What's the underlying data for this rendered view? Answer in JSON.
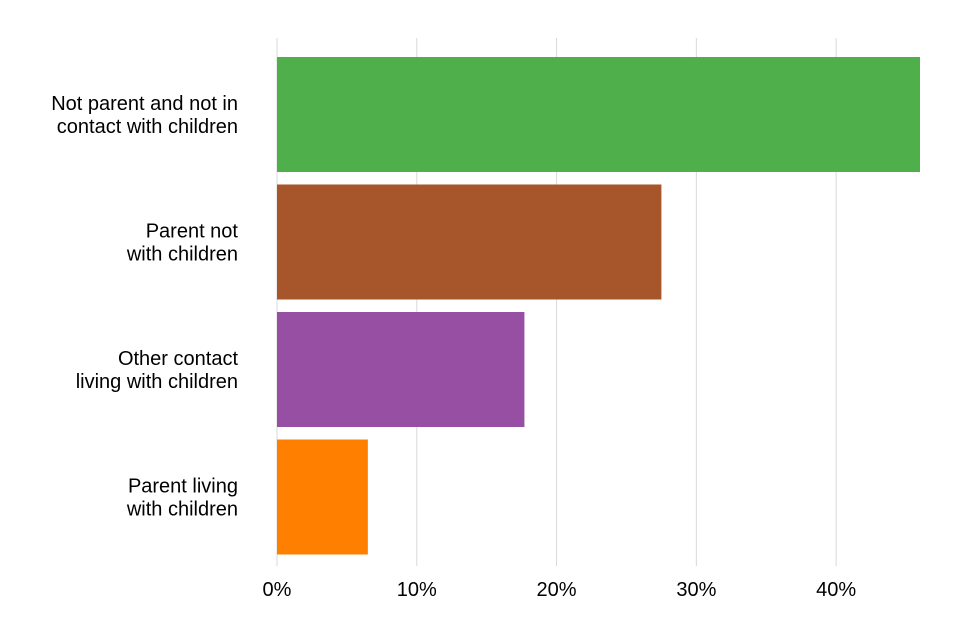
{
  "chart_data": {
    "type": "bar",
    "orientation": "horizontal",
    "title": "",
    "xlabel": "",
    "ylabel": "",
    "xlim": [
      0,
      46
    ],
    "x_ticks": [
      0,
      10,
      20,
      30,
      40
    ],
    "x_tick_labels": [
      "0%",
      "10%",
      "20%",
      "30%",
      "40%"
    ],
    "grid": true,
    "categories": [
      {
        "lines": [
          "Not parent and not in",
          "contact with children"
        ],
        "value": 46,
        "color": "#4faf4a"
      },
      {
        "lines": [
          "Parent not",
          "with children"
        ],
        "value": 27.5,
        "color": "#a6562a"
      },
      {
        "lines": [
          "Other contact",
          "living with children"
        ],
        "value": 17.7,
        "color": "#964fa3"
      },
      {
        "lines": [
          "Parent living",
          "with children"
        ],
        "value": 6.5,
        "color": "#ff8000"
      }
    ]
  }
}
